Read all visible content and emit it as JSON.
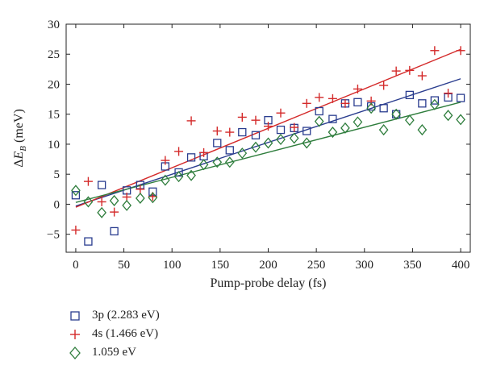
{
  "chart_data": {
    "type": "scatter",
    "xlabel": "Pump-probe delay (fs)",
    "ylabel": "ΔE_B (meV)",
    "xlim": [
      -10,
      410
    ],
    "ylim": [
      -8,
      30
    ],
    "xticks": [
      0,
      50,
      100,
      150,
      200,
      250,
      300,
      350,
      400
    ],
    "yticks": [
      -5,
      0,
      5,
      10,
      15,
      20,
      25,
      30
    ],
    "grid": false,
    "legend_placement": "below",
    "series": [
      {
        "name": "3p (2.283 eV)",
        "marker": "square",
        "color": "#2a3d8f",
        "x": [
          0,
          13,
          27,
          40,
          53,
          67,
          80,
          93,
          107,
          120,
          133,
          147,
          160,
          173,
          187,
          200,
          213,
          227,
          240,
          253,
          267,
          280,
          293,
          307,
          320,
          333,
          347,
          360,
          373,
          387,
          400
        ],
        "y": [
          1.5,
          -6.2,
          3.2,
          -4.5,
          2.3,
          3.2,
          2.1,
          6.3,
          5.3,
          7.8,
          8.0,
          10.2,
          9.0,
          12.0,
          11.5,
          14.0,
          12.4,
          12.7,
          12.2,
          15.5,
          14.2,
          16.8,
          17.0,
          16.3,
          16.0,
          15.0,
          18.2,
          16.8,
          17.3,
          17.8,
          17.7
        ],
        "fit": [
          -0.3,
          20.9
        ]
      },
      {
        "name": "4s (1.466 eV)",
        "marker": "plus",
        "color": "#d42a2a",
        "x": [
          0,
          13,
          27,
          40,
          53,
          67,
          80,
          93,
          107,
          120,
          133,
          147,
          160,
          173,
          187,
          200,
          213,
          227,
          240,
          253,
          267,
          280,
          293,
          307,
          320,
          333,
          347,
          360,
          373,
          387,
          400
        ],
        "y": [
          -4.3,
          3.8,
          0.4,
          -1.3,
          1.2,
          2.5,
          1.3,
          7.3,
          8.8,
          13.9,
          8.6,
          12.2,
          12.0,
          14.5,
          14.0,
          13.0,
          15.2,
          12.8,
          16.8,
          17.8,
          17.6,
          16.8,
          19.2,
          17.2,
          19.8,
          22.2,
          22.3,
          21.4,
          25.6,
          18.5,
          25.6
        ],
        "fit": [
          -0.5,
          25.8
        ]
      },
      {
        "name": "1.059 eV",
        "marker": "diamond",
        "color": "#2e7d3c",
        "x": [
          0,
          13,
          27,
          40,
          53,
          67,
          80,
          93,
          107,
          120,
          133,
          147,
          160,
          173,
          187,
          200,
          213,
          227,
          240,
          253,
          267,
          280,
          293,
          307,
          320,
          333,
          347,
          360,
          373,
          387,
          400
        ],
        "y": [
          2.3,
          0.4,
          -1.4,
          0.6,
          -0.2,
          1.0,
          1.1,
          4.0,
          4.6,
          4.8,
          6.6,
          7.0,
          7.0,
          8.5,
          9.5,
          10.2,
          10.8,
          11.0,
          10.2,
          13.8,
          12.0,
          12.7,
          13.7,
          16.0,
          12.4,
          15.0,
          14.0,
          12.4,
          16.6,
          14.8,
          14.1
        ],
        "fit": [
          0.3,
          17.0
        ]
      }
    ]
  }
}
